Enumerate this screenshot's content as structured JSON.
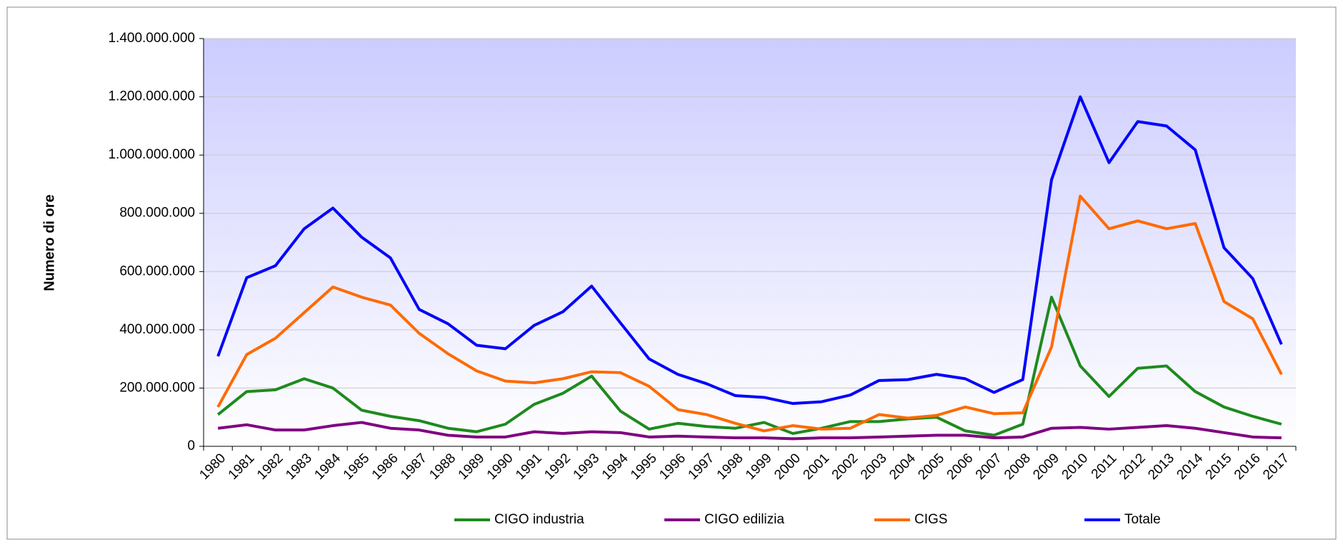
{
  "chart_data": {
    "type": "line",
    "y_label": "Numero di ore",
    "categories": [
      "1980",
      "1981",
      "1982",
      "1983",
      "1984",
      "1985",
      "1986",
      "1987",
      "1988",
      "1989",
      "1990",
      "1991",
      "1992",
      "1993",
      "1994",
      "1995",
      "1996",
      "1997",
      "1998",
      "1999",
      "2000",
      "2001",
      "2002",
      "2003",
      "2004",
      "2005",
      "2006",
      "2007",
      "2008",
      "2009",
      "2010",
      "2011",
      "2012",
      "2013",
      "2014",
      "2015",
      "2016",
      "2017"
    ],
    "series": [
      {
        "name": "CIGO industria",
        "color": "#1e8a1e",
        "values": [
          109000000,
          188000000,
          194000000,
          232000000,
          200000000,
          124000000,
          103000000,
          88000000,
          62000000,
          50000000,
          76000000,
          144000000,
          182000000,
          241000000,
          121000000,
          59000000,
          79000000,
          68000000,
          62000000,
          82000000,
          44000000,
          62000000,
          85000000,
          85000000,
          94000000,
          100000000,
          53000000,
          38000000,
          76000000,
          512000000,
          276000000,
          171000000,
          268000000,
          276000000,
          188000000,
          135000000,
          103000000,
          76000000
        ]
      },
      {
        "name": "CIGO edilizia",
        "color": "#800080",
        "values": [
          62000000,
          74000000,
          56000000,
          56000000,
          71000000,
          82000000,
          62000000,
          56000000,
          38000000,
          32000000,
          32000000,
          50000000,
          44000000,
          50000000,
          47000000,
          32000000,
          35000000,
          32000000,
          29000000,
          29000000,
          26000000,
          29000000,
          29000000,
          32000000,
          35000000,
          38000000,
          38000000,
          29000000,
          32000000,
          62000000,
          65000000,
          59000000,
          65000000,
          71000000,
          62000000,
          47000000,
          32000000,
          29000000
        ]
      },
      {
        "name": "CIGS",
        "color": "#ff6a00",
        "values": [
          135000000,
          315000000,
          371000000,
          459000000,
          547000000,
          512000000,
          485000000,
          388000000,
          318000000,
          259000000,
          224000000,
          218000000,
          232000000,
          256000000,
          253000000,
          206000000,
          126000000,
          109000000,
          79000000,
          53000000,
          71000000,
          59000000,
          62000000,
          109000000,
          97000000,
          106000000,
          135000000,
          112000000,
          115000000,
          341000000,
          859000000,
          747000000,
          774000000,
          747000000,
          765000000,
          497000000,
          438000000,
          247000000
        ]
      },
      {
        "name": "Totale",
        "color": "#0000ff",
        "values": [
          309000000,
          579000000,
          620000000,
          747000000,
          818000000,
          718000000,
          647000000,
          470000000,
          421000000,
          347000000,
          335000000,
          415000000,
          462000000,
          550000000,
          424000000,
          300000000,
          247000000,
          215000000,
          174000000,
          168000000,
          147000000,
          153000000,
          176000000,
          226000000,
          229000000,
          247000000,
          232000000,
          185000000,
          229000000,
          915000000,
          1200000000,
          974000000,
          1115000000,
          1100000000,
          1018000000,
          682000000,
          576000000,
          350000000
        ]
      }
    ],
    "ylim": [
      0,
      1400000000
    ],
    "yticks": [
      0,
      {
        "value": 200000000,
        "label": "200.000.000"
      },
      {
        "value": 400000000,
        "label": "400.000.000"
      },
      {
        "value": 600000000,
        "label": "600.000.000"
      },
      {
        "value": 800000000,
        "label": "800.000.000"
      },
      {
        "value": 1000000000,
        "label": "1.000.000.000"
      },
      {
        "value": 1200000000,
        "label": "1.200.000.000"
      },
      {
        "value": 1400000000,
        "label": "1.400.000.000"
      }
    ],
    "grid": true,
    "legend": "bottom"
  }
}
